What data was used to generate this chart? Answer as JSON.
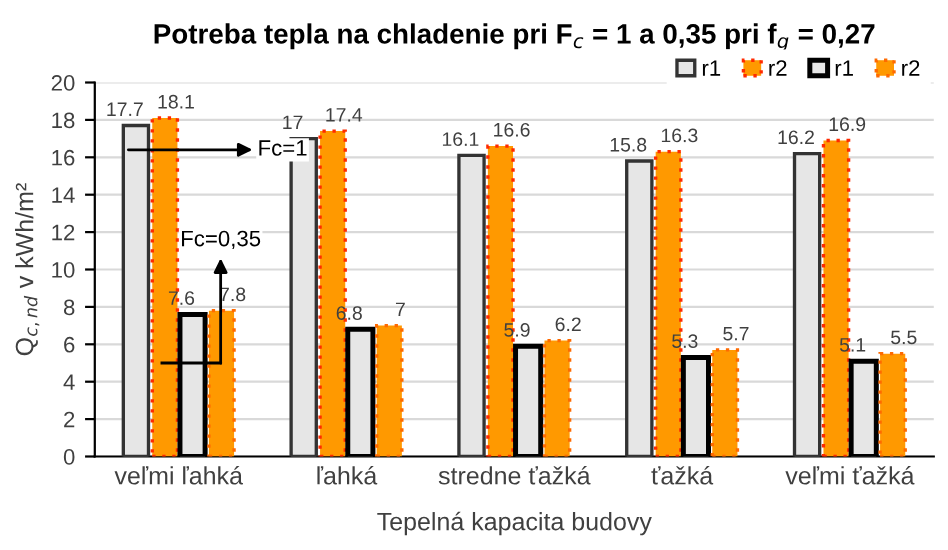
{
  "chart_data": {
    "type": "bar",
    "title": "Potreba tepla na chladenie pri F$_{c}$ = 1 a 0,35 pri f$_{g}$ = 0,27",
    "xlabel": "Tepelná kapacita budovy",
    "ylabel": "Q$_{c,nd}$ v kWh/m²",
    "categories": [
      "veľmi ľahká",
      "ľahká",
      "stredne ťažká",
      "ťažká",
      "veľmi ťažká"
    ],
    "series": [
      {
        "name": "r1",
        "color": "#e6e6e6",
        "values": [
          17.7,
          17,
          16.1,
          15.8,
          16.2
        ]
      },
      {
        "name": "r2",
        "color": "#ff9900",
        "values": [
          18.1,
          17.4,
          16.6,
          16.3,
          16.9
        ]
      },
      {
        "name": "r1",
        "color": "#e6e6e6",
        "values": [
          7.6,
          6.8,
          5.9,
          5.3,
          5.1
        ]
      },
      {
        "name": "r2",
        "color": "#ff9900",
        "values": [
          7.8,
          7,
          6.2,
          5.7,
          5.5
        ]
      }
    ],
    "ylim": [
      0,
      20
    ],
    "yticks": [
      0,
      2,
      4,
      6,
      8,
      10,
      12,
      14,
      16,
      18,
      20
    ],
    "grid": "y",
    "legend": "top right",
    "data_labels": true,
    "annotations": [
      "Fc=1",
      "Fc=0,35"
    ]
  }
}
